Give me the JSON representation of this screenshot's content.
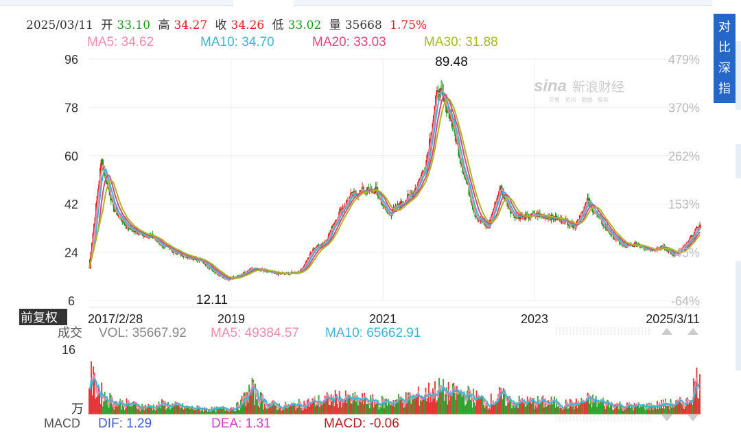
{
  "info_bar": {
    "date": "2025/03/11",
    "open_label": "开",
    "open": "33.10",
    "high_label": "高",
    "high": "34.27",
    "close_label": "收",
    "close": "34.26",
    "low_label": "低",
    "low": "33.02",
    "volume_label": "量",
    "volume": "35668",
    "change": "1.75%"
  },
  "ma_legend": [
    {
      "text": "MA5: 34.62",
      "color": "#f08caa"
    },
    {
      "text": "MA10: 34.70",
      "color": "#3ab6d6"
    },
    {
      "text": "MA20: 33.03",
      "color": "#e0457a"
    },
    {
      "text": "MA30: 31.88",
      "color": "#a8b820"
    }
  ],
  "side_button": {
    "label": "对比深指"
  },
  "watermark": {
    "brand": "新浪财经",
    "sub": "交易 · 资讯 · 数据 · 服务"
  },
  "adjust_label": "前复权",
  "vol_legend": {
    "title": "成交",
    "vol": "VOL: 35667.92",
    "ma5": "MA5: 49384.57",
    "ma10": "MA10: 65662.91"
  },
  "vol_unit": "万",
  "macd_legend": {
    "title": "MACD",
    "dif": "DIF: 1.29",
    "dea": "DEA: 1.31",
    "macd": "MACD: -0.06"
  },
  "colors": {
    "up": "#e02020",
    "down": "#1a9a1a",
    "ma5": "#f08caa",
    "ma10": "#3ab6d6",
    "ma20": "#e0457a",
    "ma30": "#a8b820"
  },
  "chart_data": [
    {
      "type": "candlestick",
      "title": "",
      "y_ticks_left": [
        "96",
        "78",
        "60",
        "42",
        "24",
        "6"
      ],
      "y_ticks_right": [
        "479%",
        "370%",
        "262%",
        "153%",
        "45%",
        "-64%"
      ],
      "x_ticks": [
        "2017/2/28",
        "2019",
        "2021",
        "2023",
        "2025/3/11"
      ],
      "ylim": [
        6,
        96
      ],
      "annotations": [
        {
          "label": "89.48",
          "value": 89.48,
          "date": "2021-11"
        },
        {
          "label": "12.11",
          "value": 12.11,
          "date": "2018-10"
        }
      ],
      "series": [
        {
          "name": "Close",
          "x": [
            "2017-02",
            "2017-03",
            "2017-04",
            "2017-06",
            "2017-08",
            "2017-10",
            "2017-12",
            "2018-02",
            "2018-04",
            "2018-06",
            "2018-08",
            "2018-10",
            "2018-12",
            "2019-03",
            "2019-06",
            "2019-09",
            "2019-12",
            "2020-02",
            "2020-04",
            "2020-06",
            "2020-08",
            "2020-10",
            "2020-12",
            "2021-02",
            "2021-04",
            "2021-06",
            "2021-08",
            "2021-10",
            "2021-11",
            "2021-12",
            "2022-02",
            "2022-04",
            "2022-06",
            "2022-08",
            "2022-10",
            "2022-12",
            "2023-02",
            "2023-04",
            "2023-06",
            "2023-08",
            "2023-10",
            "2023-12",
            "2024-02",
            "2024-04",
            "2024-06",
            "2024-08",
            "2024-10",
            "2024-12",
            "2025-02",
            "2025-03"
          ],
          "values": [
            18,
            58,
            40,
            34,
            31,
            30,
            26,
            24,
            22,
            21,
            17,
            14,
            15,
            18,
            17,
            16,
            16,
            17,
            25,
            28,
            38,
            45,
            47,
            47,
            38,
            42,
            46,
            56,
            85,
            75,
            55,
            38,
            33,
            48,
            38,
            37,
            38,
            37,
            36,
            34,
            43,
            36,
            30,
            26,
            27,
            25,
            26,
            23,
            27,
            34.26
          ]
        }
      ]
    },
    {
      "type": "bar",
      "title": "",
      "ylabel": "万",
      "y_ticks": [
        "16"
      ],
      "ylim": [
        0,
        16
      ],
      "series": [
        {
          "name": "VOL",
          "values": [
            9,
            5,
            3,
            2.5,
            2,
            1.8,
            2.5,
            2,
            1.6,
            1.4,
            1.2,
            1.5,
            2,
            6,
            3,
            2,
            2,
            2.5,
            3,
            3.5,
            4,
            3.5,
            3.5,
            3,
            3,
            3.5,
            4,
            5,
            6,
            5,
            5,
            4,
            3,
            4.5,
            3,
            3,
            3,
            3,
            2.5,
            2.5,
            3.5,
            3,
            2.5,
            2,
            2,
            2,
            2.5,
            2.5,
            3,
            10
          ]
        },
        {
          "name": "MA5",
          "values": [
            6,
            4.5,
            3,
            2.5,
            2,
            1.8,
            2.2,
            2,
            1.7,
            1.5,
            1.3,
            1.4,
            1.8,
            4,
            3,
            2.2,
            2,
            2.3,
            2.8,
            3.2,
            3.8,
            3.5,
            3.4,
            3.1,
            3,
            3.3,
            3.8,
            4.6,
            5.5,
            5,
            4.8,
            4,
            3.2,
            4,
            3.2,
            3,
            3,
            2.9,
            2.6,
            2.5,
            3.2,
            3,
            2.6,
            2.1,
            2,
            2,
            2.3,
            2.4,
            2.8,
            8
          ]
        }
      ]
    },
    {
      "type": "line",
      "title": "MACD",
      "series": [
        {
          "name": "DIF",
          "values": [
            1.29
          ]
        },
        {
          "name": "DEA",
          "values": [
            1.31
          ]
        },
        {
          "name": "MACD",
          "values": [
            -0.06
          ]
        }
      ]
    }
  ]
}
